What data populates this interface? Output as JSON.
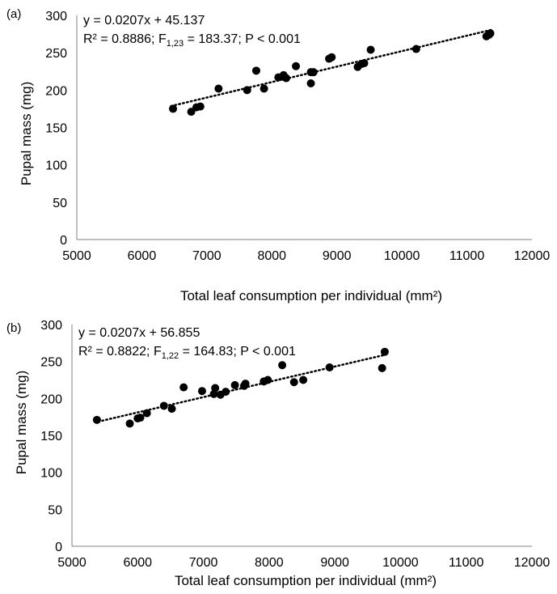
{
  "chart_data": [
    {
      "type": "scatter",
      "panel_label": "(a)",
      "title": "",
      "xlabel": "Total leaf consumption per individual (mm²)",
      "ylabel": "Pupal mass (mg)",
      "xlim": [
        5000,
        12000
      ],
      "ylim": [
        0,
        300
      ],
      "xticks": [
        "5000",
        "6000",
        "7000",
        "8000",
        "9000",
        "10000",
        "11000",
        "12000"
      ],
      "yticks": [
        "0",
        "50",
        "100",
        "150",
        "200",
        "250",
        "300"
      ],
      "grid": false,
      "equation": "y = 0.0207x + 45.137",
      "stats": {
        "r2": "R² = 0.8886; F",
        "df": "1,23",
        "rest": " = 183.37; P < 0.001"
      },
      "trendline": {
        "slope": 0.0207,
        "intercept": 45.137,
        "x_range": [
          6450,
          11400
        ],
        "style": "dotted"
      },
      "points": [
        [
          6480,
          175
        ],
        [
          6760,
          171
        ],
        [
          6840,
          177
        ],
        [
          6900,
          178
        ],
        [
          7180,
          202
        ],
        [
          7620,
          200
        ],
        [
          7760,
          226
        ],
        [
          7880,
          202
        ],
        [
          8100,
          217
        ],
        [
          8180,
          220
        ],
        [
          8220,
          216
        ],
        [
          8370,
          232
        ],
        [
          8600,
          224
        ],
        [
          8640,
          224
        ],
        [
          8600,
          209
        ],
        [
          8880,
          242
        ],
        [
          8920,
          244
        ],
        [
          9320,
          231
        ],
        [
          9380,
          235
        ],
        [
          9420,
          236
        ],
        [
          9520,
          254
        ],
        [
          10220,
          255
        ],
        [
          11300,
          272
        ],
        [
          11340,
          274
        ],
        [
          11360,
          276
        ]
      ]
    },
    {
      "type": "scatter",
      "panel_label": "(b)",
      "title": "",
      "xlabel": "Total leaf consumption per individual (mm²)",
      "ylabel": "Pupal mass (mg)",
      "xlim": [
        5000,
        12000
      ],
      "ylim": [
        0,
        300
      ],
      "xticks": [
        "5000",
        "6000",
        "7000",
        "8000",
        "9000",
        "10000",
        "11000",
        "12000"
      ],
      "yticks": [
        "0",
        "50",
        "100",
        "150",
        "200",
        "250",
        "300"
      ],
      "grid": false,
      "equation": "y = 0.0207x + 56.855",
      "stats": {
        "r2": "R² = 0.8822; F",
        "df": "1,22",
        "rest": " = 164.83; P < 0.001"
      },
      "trendline": {
        "slope": 0.0207,
        "intercept": 56.855,
        "x_range": [
          5400,
          9750
        ],
        "style": "dotted"
      },
      "points": [
        [
          5380,
          171
        ],
        [
          5880,
          166
        ],
        [
          6000,
          173
        ],
        [
          6040,
          174
        ],
        [
          6140,
          180
        ],
        [
          6400,
          190
        ],
        [
          6520,
          186
        ],
        [
          6700,
          215
        ],
        [
          6980,
          210
        ],
        [
          7160,
          206
        ],
        [
          7180,
          214
        ],
        [
          7260,
          205
        ],
        [
          7340,
          209
        ],
        [
          7480,
          218
        ],
        [
          7620,
          217
        ],
        [
          7640,
          220
        ],
        [
          7920,
          223
        ],
        [
          7980,
          225
        ],
        [
          8200,
          245
        ],
        [
          8380,
          222
        ],
        [
          8520,
          225
        ],
        [
          8920,
          242
        ],
        [
          9720,
          241
        ],
        [
          9760,
          263
        ]
      ]
    }
  ]
}
